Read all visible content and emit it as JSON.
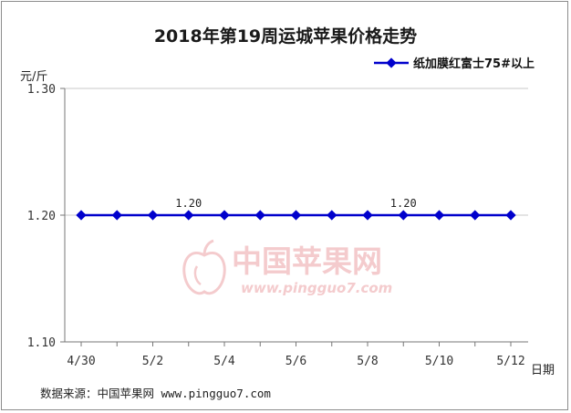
{
  "chart_data": {
    "type": "line",
    "title": "2018年第19周运城苹果价格走势",
    "ylabel": "元/斤",
    "xlabel": "日期",
    "ylim": [
      1.1,
      1.3
    ],
    "yticks": [
      "1.30",
      "1.20",
      "1.10"
    ],
    "ytick_values": [
      1.3,
      1.2,
      1.1
    ],
    "x": [
      "4/30",
      "5/1",
      "5/2",
      "5/3",
      "5/4",
      "5/5",
      "5/6",
      "5/7",
      "5/8",
      "5/9",
      "5/10",
      "5/11",
      "5/12"
    ],
    "xtick_labels": [
      "4/30",
      "",
      "5/2",
      "",
      "5/4",
      "",
      "5/6",
      "",
      "5/8",
      "",
      "5/10",
      "",
      "5/12"
    ],
    "series": [
      {
        "name": "纸加膜红富士75#以上",
        "color": "#0000cc",
        "values": [
          1.2,
          1.2,
          1.2,
          1.2,
          1.2,
          1.2,
          1.2,
          1.2,
          1.2,
          1.2,
          1.2,
          1.2,
          1.2
        ]
      }
    ],
    "data_labels": [
      {
        "index": 3,
        "text": "1.20"
      },
      {
        "index": 9,
        "text": "1.20"
      }
    ],
    "legend_position": "top-right",
    "grid": "horizontal"
  },
  "watermark": {
    "name": "中国苹果网",
    "url": "www.pingguo7.com"
  },
  "source": "数据来源：中国苹果网 www.pingguo7.com"
}
